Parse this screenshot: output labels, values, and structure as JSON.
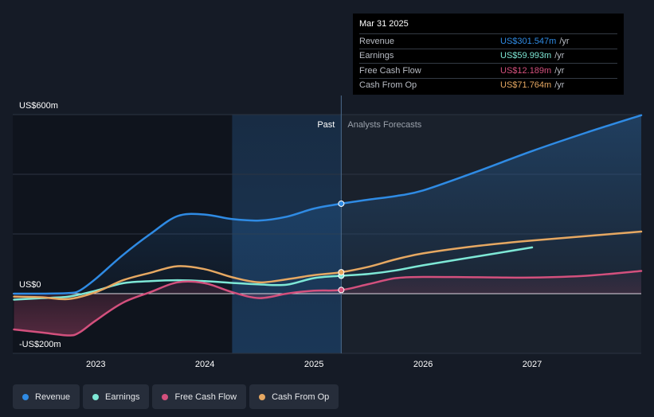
{
  "tooltip": {
    "date": "Mar 31 2025",
    "unit": "/yr",
    "rows": [
      {
        "name": "Revenue",
        "value": "US$301.547m",
        "color": "#2f8be4"
      },
      {
        "name": "Earnings",
        "value": "US$59.993m",
        "color": "#7ee8d6"
      },
      {
        "name": "Free Cash Flow",
        "value": "US$12.189m",
        "color": "#d3507d"
      },
      {
        "name": "Cash From Op",
        "value": "US$71.764m",
        "color": "#e6a862"
      }
    ]
  },
  "legend": [
    {
      "label": "Revenue",
      "color": "#2f8be4"
    },
    {
      "label": "Earnings",
      "color": "#7ee8d6"
    },
    {
      "label": "Free Cash Flow",
      "color": "#d3507d"
    },
    {
      "label": "Cash From Op",
      "color": "#e6a862"
    }
  ],
  "chart_data": {
    "type": "line",
    "title": "",
    "xlabel": "",
    "ylabel": "",
    "units": "US$ millions",
    "x_range": [
      2022.0,
      2028.0
    ],
    "ylim": [
      -200,
      600
    ],
    "y_ticks": [
      {
        "value": 600,
        "label": "US$600m"
      },
      {
        "value": 0,
        "label": "US$0"
      },
      {
        "value": -200,
        "label": "-US$200m"
      }
    ],
    "x_ticks": [
      {
        "value": 2023,
        "label": "2023"
      },
      {
        "value": 2024,
        "label": "2024"
      },
      {
        "value": 2025,
        "label": "2025"
      },
      {
        "value": 2026,
        "label": "2026"
      },
      {
        "value": 2027,
        "label": "2027"
      }
    ],
    "past_label": "Past",
    "forecast_label": "Analysts Forecasts",
    "past_forecast_boundary": 2025.25,
    "highlight_start": 2024.25,
    "highlight_point_x": 2025.25,
    "series": [
      {
        "name": "Revenue",
        "color": "#2f8be4",
        "points": [
          [
            2022.25,
            0
          ],
          [
            2022.5,
            0
          ],
          [
            2022.75,
            2
          ],
          [
            2022.85,
            10
          ],
          [
            2023.0,
            50
          ],
          [
            2023.25,
            130
          ],
          [
            2023.5,
            200
          ],
          [
            2023.75,
            260
          ],
          [
            2024.0,
            265
          ],
          [
            2024.25,
            250
          ],
          [
            2024.5,
            245
          ],
          [
            2024.75,
            258
          ],
          [
            2025.0,
            285
          ],
          [
            2025.25,
            301.5
          ],
          [
            2025.5,
            315
          ],
          [
            2025.75,
            327
          ],
          [
            2026.0,
            346
          ],
          [
            2026.5,
            410
          ],
          [
            2027.0,
            478
          ],
          [
            2027.5,
            540
          ],
          [
            2028.0,
            598
          ]
        ]
      },
      {
        "name": "Earnings",
        "color": "#7ee8d6",
        "points": [
          [
            2022.25,
            -20
          ],
          [
            2022.5,
            -15
          ],
          [
            2022.75,
            -10
          ],
          [
            2023.0,
            10
          ],
          [
            2023.25,
            35
          ],
          [
            2023.5,
            42
          ],
          [
            2023.75,
            45
          ],
          [
            2024.0,
            42
          ],
          [
            2024.25,
            36
          ],
          [
            2024.5,
            31
          ],
          [
            2024.75,
            30
          ],
          [
            2025.0,
            52
          ],
          [
            2025.25,
            60
          ],
          [
            2025.5,
            66
          ],
          [
            2025.75,
            78
          ],
          [
            2026.0,
            95
          ],
          [
            2026.5,
            125
          ],
          [
            2027.0,
            155
          ]
        ]
      },
      {
        "name": "Free Cash Flow",
        "color": "#d3507d",
        "points": [
          [
            2022.25,
            -120
          ],
          [
            2022.5,
            -130
          ],
          [
            2022.75,
            -140
          ],
          [
            2022.85,
            -130
          ],
          [
            2023.0,
            -90
          ],
          [
            2023.25,
            -30
          ],
          [
            2023.5,
            5
          ],
          [
            2023.75,
            38
          ],
          [
            2024.0,
            35
          ],
          [
            2024.25,
            5
          ],
          [
            2024.5,
            -15
          ],
          [
            2024.75,
            0
          ],
          [
            2025.0,
            10
          ],
          [
            2025.25,
            12.2
          ],
          [
            2025.5,
            32
          ],
          [
            2025.75,
            52
          ],
          [
            2026.0,
            56
          ],
          [
            2026.5,
            55
          ],
          [
            2027.0,
            54
          ],
          [
            2027.5,
            60
          ],
          [
            2028.0,
            76
          ]
        ]
      },
      {
        "name": "Cash From Op",
        "color": "#e6a862",
        "points": [
          [
            2022.25,
            -10
          ],
          [
            2022.5,
            -12
          ],
          [
            2022.75,
            -18
          ],
          [
            2023.0,
            5
          ],
          [
            2023.25,
            45
          ],
          [
            2023.5,
            70
          ],
          [
            2023.75,
            92
          ],
          [
            2024.0,
            82
          ],
          [
            2024.25,
            55
          ],
          [
            2024.5,
            38
          ],
          [
            2024.75,
            48
          ],
          [
            2025.0,
            62
          ],
          [
            2025.25,
            71.8
          ],
          [
            2025.5,
            90
          ],
          [
            2025.75,
            115
          ],
          [
            2026.0,
            135
          ],
          [
            2026.5,
            160
          ],
          [
            2027.0,
            178
          ],
          [
            2027.5,
            193
          ],
          [
            2028.0,
            208
          ]
        ]
      }
    ]
  }
}
